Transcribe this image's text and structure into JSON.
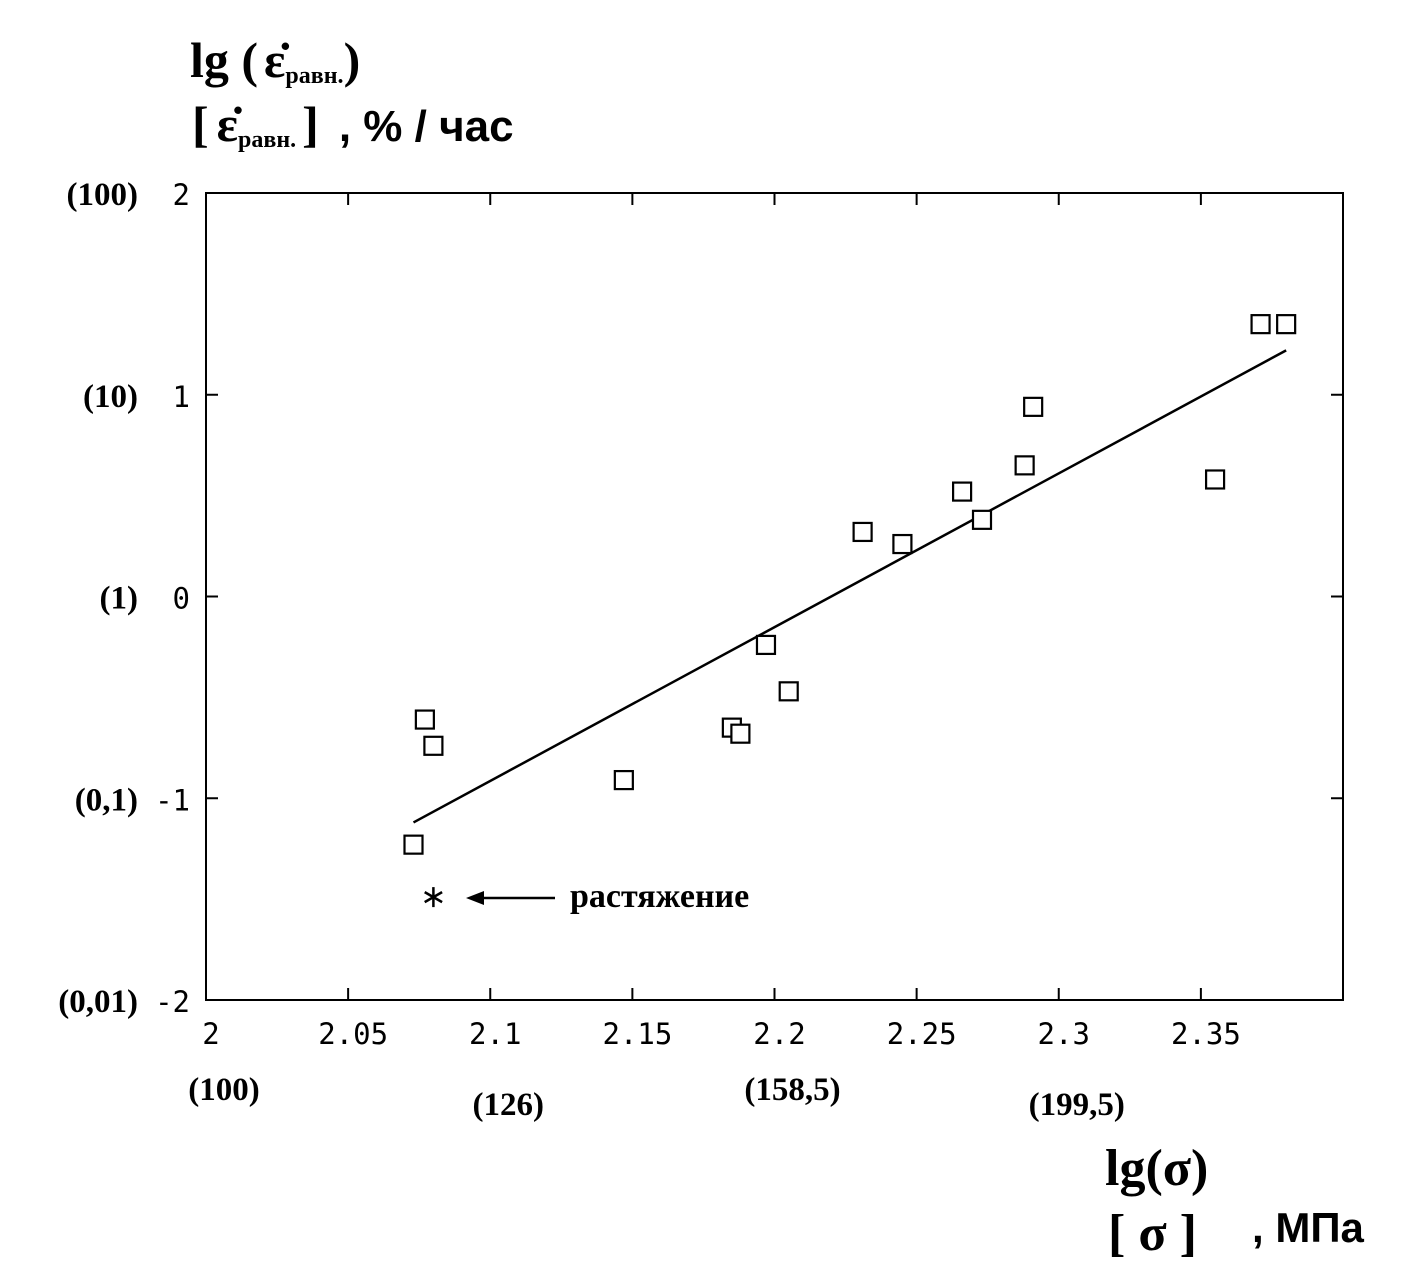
{
  "chart_data": {
    "type": "scatter",
    "ylabel": {
      "line1_prefix": "lg (",
      "symbol": "ε̇",
      "subscript": "равн.",
      "line1_suffix": ")",
      "line2_open": "[",
      "line2_close": "]",
      "unit": ", % / час"
    },
    "xlabel": {
      "line1": "lg(σ)",
      "line2": "[ σ ]",
      "unit": ", МПа"
    },
    "xlim": [
      2,
      2.4
    ],
    "ylim": [
      -2,
      2
    ],
    "x_ticks": [
      {
        "value": 2,
        "label": "2"
      },
      {
        "value": 2.05,
        "label": "2.05"
      },
      {
        "value": 2.1,
        "label": "2.1"
      },
      {
        "value": 2.15,
        "label": "2.15"
      },
      {
        "value": 2.2,
        "label": "2.2"
      },
      {
        "value": 2.25,
        "label": "2.25"
      },
      {
        "value": 2.3,
        "label": "2.3"
      },
      {
        "value": 2.35,
        "label": "2.35"
      }
    ],
    "y_ticks": [
      {
        "value": 2,
        "label": "2",
        "paren": "(100)"
      },
      {
        "value": 1,
        "label": "1",
        "paren": "(10)"
      },
      {
        "value": 0,
        "label": "0",
        "paren": "(1)"
      },
      {
        "value": -1,
        "label": "-1",
        "paren": "(0,1)"
      },
      {
        "value": -2,
        "label": "-2",
        "paren": "(0,01)"
      }
    ],
    "x_paren_labels": [
      {
        "value": 2.0,
        "label": "(100)"
      },
      {
        "value": 2.1,
        "label": "(126)"
      },
      {
        "value": 2.2,
        "label": "(158,5)"
      },
      {
        "value": 2.3,
        "label": "(199,5)"
      }
    ],
    "series": [
      {
        "marker": "square",
        "points": [
          {
            "x": 2.073,
            "y": -1.23
          },
          {
            "x": 2.077,
            "y": -0.61
          },
          {
            "x": 2.08,
            "y": -0.74
          },
          {
            "x": 2.147,
            "y": -0.91
          },
          {
            "x": 2.185,
            "y": -0.65
          },
          {
            "x": 2.188,
            "y": -0.68
          },
          {
            "x": 2.197,
            "y": -0.24
          },
          {
            "x": 2.205,
            "y": -0.47
          },
          {
            "x": 2.231,
            "y": 0.32
          },
          {
            "x": 2.245,
            "y": 0.26
          },
          {
            "x": 2.266,
            "y": 0.52
          },
          {
            "x": 2.273,
            "y": 0.38
          },
          {
            "x": 2.288,
            "y": 0.65
          },
          {
            "x": 2.291,
            "y": 0.94
          },
          {
            "x": 2.355,
            "y": 0.58
          },
          {
            "x": 2.371,
            "y": 1.35
          },
          {
            "x": 2.38,
            "y": 1.35
          }
        ]
      },
      {
        "marker": "asterisk",
        "points": [
          {
            "x": 2.08,
            "y": -1.49
          }
        ]
      }
    ],
    "fit_line": {
      "x": [
        2.073,
        2.38
      ],
      "y": [
        -1.12,
        1.22
      ]
    },
    "annotation": {
      "text": "растяжение",
      "x": 2.08,
      "y": -1.49
    }
  }
}
